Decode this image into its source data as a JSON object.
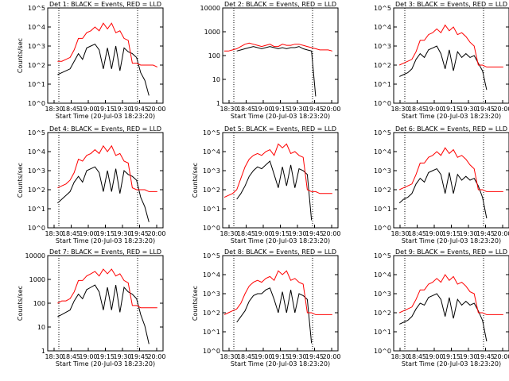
{
  "chart_data": [
    {
      "type": "line",
      "title": "Det 1: BLACK = Events, RED = LLD",
      "ylabel": "Counts/sec",
      "xlabel": "Start Time (20-Jul-03 18:23:20)",
      "yticks": [
        "10^0",
        "10^1",
        "10^2",
        "10^3",
        "10^4",
        "10^5"
      ],
      "ylog": [
        0,
        5
      ],
      "xticks": [
        "18:30",
        "18:45",
        "19:00",
        "19:15",
        "19:30",
        "19:45",
        "20:00"
      ],
      "series": [
        {
          "values": [
            null,
            null,
            1.5,
            1.6,
            1.7,
            1.8,
            2.2,
            2.6,
            2.3,
            2.9,
            3.0,
            3.1,
            2.8,
            1.8,
            2.9,
            1.8,
            3.0,
            1.7,
            2.9,
            2.7,
            2.6,
            2.4,
            1.6,
            1.2,
            0.4,
            null,
            null,
            null
          ]
        },
        {
          "values": [
            null,
            null,
            2.2,
            2.2,
            2.3,
            2.4,
            2.8,
            3.4,
            3.4,
            3.7,
            3.8,
            4.0,
            3.8,
            4.2,
            3.9,
            4.2,
            3.7,
            3.8,
            3.4,
            3.3,
            2.1,
            2.1,
            2.0,
            2.0,
            2.0,
            2.0,
            1.9,
            null
          ]
        }
      ]
    },
    {
      "type": "line",
      "title": "Det 2: BLACK = Events, RED = LLD",
      "ylabel": "",
      "xlabel": "Start Time (20-Jul-03 18:23:20)",
      "yticks": [
        "1",
        "10",
        "100",
        "1000",
        "10000"
      ],
      "ylog": [
        0,
        4.2
      ],
      "xticks": [
        "18:30",
        "18:45",
        "19:00",
        "19:15",
        "19:30",
        "19:45",
        "20:00"
      ],
      "series": [
        {
          "values": [
            null,
            null,
            null,
            2.3,
            2.35,
            2.4,
            2.45,
            2.5,
            2.45,
            2.4,
            2.45,
            2.5,
            2.45,
            2.4,
            2.45,
            2.4,
            2.45,
            2.45,
            2.5,
            2.4,
            2.35,
            2.3,
            0.3,
            null,
            null,
            null,
            null,
            null
          ]
        },
        {
          "values": [
            2.3,
            2.3,
            2.35,
            2.4,
            2.5,
            2.6,
            2.65,
            2.6,
            2.55,
            2.5,
            2.55,
            2.6,
            2.5,
            2.5,
            2.6,
            2.55,
            2.55,
            2.6,
            2.6,
            2.55,
            2.5,
            2.45,
            2.4,
            2.35,
            2.35,
            2.35,
            2.3,
            null
          ]
        }
      ]
    },
    {
      "type": "line",
      "title": "Det 3: BLACK = Events, RED = LLD",
      "ylabel": "",
      "xlabel": "Start Time (20-Jul-03 18:23:20)",
      "yticks": [
        "10^0",
        "10^1",
        "10^2",
        "10^3",
        "10^4",
        "10^5"
      ],
      "ylog": [
        0,
        5
      ],
      "xticks": [
        "18:30",
        "18:45",
        "19:00",
        "19:15",
        "19:30",
        "19:45",
        "20:00"
      ],
      "series": [
        {
          "values": [
            null,
            1.4,
            1.5,
            1.6,
            1.8,
            2.3,
            2.6,
            2.4,
            2.8,
            2.9,
            3.0,
            2.6,
            1.8,
            2.8,
            1.7,
            2.7,
            2.4,
            2.6,
            2.4,
            2.5,
            2.1,
            1.7,
            0.7,
            null,
            null,
            null,
            null,
            null
          ]
        },
        {
          "values": [
            null,
            2.0,
            2.1,
            2.2,
            2.3,
            2.7,
            3.3,
            3.3,
            3.6,
            3.7,
            3.9,
            3.7,
            4.1,
            3.8,
            4.0,
            3.6,
            3.7,
            3.5,
            3.2,
            3.0,
            2.0,
            2.0,
            1.9,
            1.9,
            1.9,
            1.9,
            1.9,
            null
          ]
        }
      ]
    },
    {
      "type": "line",
      "title": "Det 4: BLACK = Events, RED = LLD",
      "ylabel": "Counts/sec",
      "xlabel": "Start Time (20-Jul-03 18:23:20)",
      "yticks": [
        "10^0",
        "10^1",
        "10^2",
        "10^3",
        "10^4",
        "10^5"
      ],
      "ylog": [
        0,
        5
      ],
      "xticks": [
        "18:30",
        "18:45",
        "19:00",
        "19:15",
        "19:30",
        "19:45",
        "20:00"
      ],
      "series": [
        {
          "values": [
            null,
            null,
            1.3,
            1.5,
            1.7,
            1.9,
            2.4,
            2.7,
            2.4,
            3.0,
            3.1,
            3.2,
            2.9,
            1.9,
            3.0,
            1.9,
            3.1,
            1.8,
            3.0,
            2.8,
            2.7,
            2.5,
            1.6,
            1.1,
            0.3,
            null,
            null,
            null
          ]
        },
        {
          "values": [
            null,
            null,
            2.1,
            2.2,
            2.3,
            2.5,
            2.9,
            3.6,
            3.5,
            3.8,
            3.9,
            4.1,
            3.9,
            4.3,
            4.0,
            4.3,
            3.8,
            3.9,
            3.5,
            3.4,
            2.1,
            2.0,
            2.0,
            2.0,
            1.9,
            1.9,
            1.9,
            null
          ]
        }
      ]
    },
    {
      "type": "line",
      "title": "Det 5: BLACK = Events, RED = LLD",
      "ylabel": "Counts/sec",
      "xlabel": "Start Time (20-Jul-03 18:23:20)",
      "yticks": [
        "10^0",
        "10^1",
        "10^2",
        "10^3",
        "10^4",
        "10^5"
      ],
      "ylog": [
        0,
        5
      ],
      "xticks": [
        "18:30",
        "18:45",
        "19:00",
        "19:15",
        "19:30",
        "19:45",
        "20:00"
      ],
      "series": [
        {
          "values": [
            null,
            null,
            null,
            1.5,
            1.8,
            2.2,
            2.7,
            3.0,
            3.2,
            3.1,
            3.3,
            3.5,
            2.8,
            2.1,
            3.2,
            2.2,
            3.3,
            2.1,
            3.1,
            3.0,
            2.8,
            0.4,
            null,
            null,
            null,
            null,
            null,
            null
          ]
        },
        {
          "values": [
            1.6,
            1.7,
            1.8,
            2.0,
            2.6,
            3.2,
            3.6,
            3.8,
            3.9,
            3.8,
            4.0,
            4.1,
            3.8,
            4.4,
            4.2,
            4.4,
            3.9,
            4.0,
            3.8,
            3.7,
            2.0,
            1.9,
            1.9,
            1.8,
            1.8,
            1.8,
            1.8,
            null
          ]
        }
      ]
    },
    {
      "type": "line",
      "title": "Det 6: BLACK = Events, RED = LLD",
      "ylabel": "",
      "xlabel": "Start Time (20-Jul-03 18:23:20)",
      "yticks": [
        "10^0",
        "10^1",
        "10^2",
        "10^3",
        "10^4",
        "10^5"
      ],
      "ylog": [
        0,
        5
      ],
      "xticks": [
        "18:30",
        "18:45",
        "19:00",
        "19:15",
        "19:30",
        "19:45",
        "20:00"
      ],
      "series": [
        {
          "values": [
            null,
            1.3,
            1.5,
            1.6,
            1.8,
            2.3,
            2.6,
            2.4,
            2.9,
            3.0,
            3.1,
            2.8,
            1.8,
            2.9,
            1.8,
            2.8,
            2.5,
            2.7,
            2.5,
            2.6,
            2.2,
            1.6,
            0.5,
            null,
            null,
            null,
            null,
            null
          ]
        },
        {
          "values": [
            null,
            2.0,
            2.1,
            2.2,
            2.3,
            2.8,
            3.4,
            3.4,
            3.7,
            3.8,
            4.0,
            3.8,
            4.2,
            3.9,
            4.1,
            3.7,
            3.8,
            3.6,
            3.3,
            3.1,
            2.0,
            2.0,
            1.9,
            1.9,
            1.9,
            1.9,
            1.9,
            null
          ]
        }
      ]
    },
    {
      "type": "line",
      "title": "Det 7: BLACK = Events, RED = LLD",
      "ylabel": "Counts/sec",
      "xlabel": "Start Time (20-Jul-03 18:23:20)",
      "yticks": [
        "1",
        "10",
        "100",
        "1000",
        "10000"
      ],
      "ylog": [
        0,
        4.2
      ],
      "xticks": [
        "18:30",
        "18:45",
        "19:00",
        "19:15",
        "19:30",
        "19:45",
        "20:00"
      ],
      "series": [
        {
          "values": [
            null,
            null,
            1.5,
            1.6,
            1.7,
            1.8,
            2.2,
            2.5,
            2.3,
            2.7,
            2.8,
            2.9,
            2.6,
            1.8,
            2.8,
            1.8,
            2.9,
            1.7,
            2.8,
            2.6,
            2.5,
            2.3,
            1.6,
            1.1,
            0.3,
            null,
            null,
            null
          ]
        },
        {
          "values": [
            null,
            null,
            2.1,
            2.2,
            2.2,
            2.3,
            2.6,
            3.1,
            3.1,
            3.3,
            3.4,
            3.5,
            3.3,
            3.6,
            3.4,
            3.6,
            3.3,
            3.4,
            3.1,
            3.0,
            2.0,
            2.0,
            1.9,
            1.9,
            1.9,
            1.9,
            1.9,
            null
          ]
        }
      ]
    },
    {
      "type": "line",
      "title": "Det 8: BLACK = Events, RED = LLD",
      "ylabel": "Counts/sec",
      "xlabel": "Start Time (20-Jul-03 18:23:20)",
      "yticks": [
        "10^0",
        "10^1",
        "10^2",
        "10^3",
        "10^4",
        "10^5"
      ],
      "ylog": [
        0,
        5
      ],
      "xticks": [
        "18:30",
        "18:45",
        "19:00",
        "19:15",
        "19:30",
        "19:45",
        "20:00"
      ],
      "series": [
        {
          "values": [
            null,
            null,
            null,
            1.5,
            1.8,
            2.1,
            2.6,
            2.9,
            3.0,
            3.0,
            3.2,
            3.3,
            2.7,
            2.0,
            3.1,
            2.0,
            3.2,
            2.0,
            3.0,
            2.9,
            2.7,
            0.4,
            null,
            null,
            null,
            null,
            null,
            null
          ]
        },
        {
          "values": [
            1.9,
            2.0,
            2.1,
            2.2,
            2.5,
            3.0,
            3.4,
            3.6,
            3.7,
            3.6,
            3.8,
            3.9,
            3.7,
            4.2,
            4.0,
            4.2,
            3.7,
            3.8,
            3.6,
            3.5,
            2.0,
            2.0,
            1.9,
            1.9,
            1.9,
            1.9,
            1.9,
            null
          ]
        }
      ]
    },
    {
      "type": "line",
      "title": "Det 9: BLACK = Events, RED = LLD",
      "ylabel": "",
      "xlabel": "Start Time (20-Jul-03 18:23:20)",
      "yticks": [
        "10^0",
        "10^1",
        "10^2",
        "10^3",
        "10^4",
        "10^5"
      ],
      "ylog": [
        0,
        5
      ],
      "xticks": [
        "18:30",
        "18:45",
        "19:00",
        "19:15",
        "19:30",
        "19:45",
        "20:00"
      ],
      "series": [
        {
          "values": [
            null,
            1.4,
            1.5,
            1.6,
            1.8,
            2.2,
            2.5,
            2.4,
            2.8,
            2.9,
            3.0,
            2.7,
            1.8,
            2.8,
            1.7,
            2.7,
            2.4,
            2.6,
            2.4,
            2.5,
            2.1,
            1.6,
            0.5,
            null,
            null,
            null,
            null,
            null
          ]
        },
        {
          "values": [
            null,
            2.0,
            2.1,
            2.2,
            2.3,
            2.7,
            3.2,
            3.2,
            3.5,
            3.6,
            3.8,
            3.6,
            4.0,
            3.7,
            3.9,
            3.5,
            3.6,
            3.4,
            3.1,
            3.0,
            2.0,
            2.0,
            1.9,
            1.9,
            1.9,
            1.9,
            1.9,
            null
          ]
        }
      ]
    }
  ]
}
